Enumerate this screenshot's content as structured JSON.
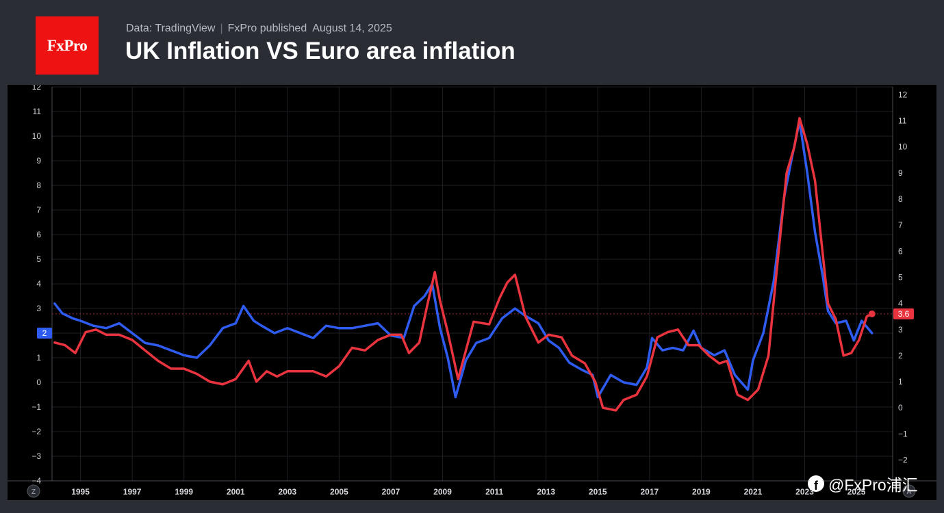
{
  "header": {
    "logo_text": "FxPro",
    "source": "Data: TradingView",
    "publisher": "FxPro published",
    "date": "August 14, 2025",
    "title": "UK Inflation VS Euro area inflation"
  },
  "watermark": {
    "icon": "facebook-icon",
    "text": "@FxPro浦汇"
  },
  "chart_data": {
    "type": "line",
    "title": "UK Inflation VS Euro area inflation",
    "xlim": [
      1993.9,
      2026.4
    ],
    "x_ticks": [
      "1995",
      "1997",
      "1999",
      "2001",
      "2003",
      "2005",
      "2007",
      "2009",
      "2011",
      "2013",
      "2015",
      "2017",
      "2019",
      "2021",
      "2023",
      "2025"
    ],
    "left_axis": {
      "ylim": [
        -4,
        12
      ],
      "ticks": [
        "12",
        "11",
        "10",
        "9",
        "8",
        "7",
        "6",
        "5",
        "4",
        "3",
        "2",
        "1",
        "0",
        "−1",
        "−2",
        "−3",
        "−4"
      ]
    },
    "right_axis": {
      "ylim": [
        -2.8,
        12.3
      ],
      "ticks": [
        "12",
        "11",
        "10",
        "9",
        "8",
        "7",
        "6",
        "5",
        "4",
        "3",
        "2",
        "1",
        "0",
        "−1",
        "−2"
      ]
    },
    "grid": true,
    "left_badge": "2",
    "right_badge": "3.6",
    "scale_buttons": {
      "left": "Z",
      "right": "A"
    },
    "series": [
      {
        "color": "#2f5cf0",
        "axis": "left",
        "points": [
          [
            1994.0,
            3.2
          ],
          [
            1994.3,
            2.8
          ],
          [
            1994.7,
            2.6
          ],
          [
            1995.0,
            2.5
          ],
          [
            1995.5,
            2.3
          ],
          [
            1996.0,
            2.2
          ],
          [
            1996.5,
            2.4
          ],
          [
            1997.0,
            2.0
          ],
          [
            1997.5,
            1.6
          ],
          [
            1998.0,
            1.5
          ],
          [
            1998.5,
            1.3
          ],
          [
            1999.0,
            1.1
          ],
          [
            1999.5,
            1.0
          ],
          [
            2000.0,
            1.5
          ],
          [
            2000.5,
            2.2
          ],
          [
            2001.0,
            2.4
          ],
          [
            2001.3,
            3.1
          ],
          [
            2001.7,
            2.5
          ],
          [
            2002.0,
            2.3
          ],
          [
            2002.5,
            2.0
          ],
          [
            2003.0,
            2.2
          ],
          [
            2003.5,
            2.0
          ],
          [
            2004.0,
            1.8
          ],
          [
            2004.5,
            2.3
          ],
          [
            2005.0,
            2.2
          ],
          [
            2005.5,
            2.2
          ],
          [
            2006.0,
            2.3
          ],
          [
            2006.5,
            2.4
          ],
          [
            2007.0,
            1.9
          ],
          [
            2007.5,
            1.8
          ],
          [
            2007.9,
            3.1
          ],
          [
            2008.3,
            3.5
          ],
          [
            2008.6,
            4.0
          ],
          [
            2008.9,
            2.2
          ],
          [
            2009.2,
            1.0
          ],
          [
            2009.5,
            -0.6
          ],
          [
            2009.9,
            0.9
          ],
          [
            2010.3,
            1.6
          ],
          [
            2010.8,
            1.8
          ],
          [
            2011.3,
            2.6
          ],
          [
            2011.8,
            3.0
          ],
          [
            2012.2,
            2.7
          ],
          [
            2012.7,
            2.4
          ],
          [
            2013.1,
            1.7
          ],
          [
            2013.5,
            1.4
          ],
          [
            2013.9,
            0.8
          ],
          [
            2014.4,
            0.5
          ],
          [
            2014.8,
            0.3
          ],
          [
            2015.0,
            -0.6
          ],
          [
            2015.5,
            0.3
          ],
          [
            2016.0,
            0.0
          ],
          [
            2016.5,
            -0.1
          ],
          [
            2016.9,
            0.6
          ],
          [
            2017.1,
            1.8
          ],
          [
            2017.5,
            1.3
          ],
          [
            2017.9,
            1.4
          ],
          [
            2018.3,
            1.3
          ],
          [
            2018.7,
            2.1
          ],
          [
            2019.0,
            1.4
          ],
          [
            2019.5,
            1.1
          ],
          [
            2019.9,
            1.3
          ],
          [
            2020.3,
            0.3
          ],
          [
            2020.8,
            -0.3
          ],
          [
            2021.0,
            0.9
          ],
          [
            2021.4,
            2.0
          ],
          [
            2021.8,
            4.1
          ],
          [
            2022.2,
            7.5
          ],
          [
            2022.5,
            9.1
          ],
          [
            2022.8,
            10.6
          ],
          [
            2023.1,
            8.5
          ],
          [
            2023.4,
            6.1
          ],
          [
            2023.7,
            4.3
          ],
          [
            2023.9,
            2.9
          ],
          [
            2024.2,
            2.4
          ],
          [
            2024.6,
            2.5
          ],
          [
            2024.9,
            1.7
          ],
          [
            2025.2,
            2.5
          ],
          [
            2025.6,
            2.0
          ]
        ]
      },
      {
        "color": "#e9343f",
        "axis": "right",
        "points": [
          [
            1994.0,
            2.5
          ],
          [
            1994.4,
            2.4
          ],
          [
            1994.8,
            2.1
          ],
          [
            1995.2,
            2.9
          ],
          [
            1995.6,
            3.0
          ],
          [
            1996.0,
            2.8
          ],
          [
            1996.5,
            2.8
          ],
          [
            1997.0,
            2.6
          ],
          [
            1997.5,
            2.2
          ],
          [
            1998.0,
            1.8
          ],
          [
            1998.5,
            1.5
          ],
          [
            1999.0,
            1.5
          ],
          [
            1999.5,
            1.3
          ],
          [
            2000.0,
            1.0
          ],
          [
            2000.5,
            0.9
          ],
          [
            2001.0,
            1.1
          ],
          [
            2001.5,
            1.8
          ],
          [
            2001.8,
            1.0
          ],
          [
            2002.2,
            1.4
          ],
          [
            2002.6,
            1.2
          ],
          [
            2003.0,
            1.4
          ],
          [
            2003.5,
            1.4
          ],
          [
            2004.0,
            1.4
          ],
          [
            2004.5,
            1.2
          ],
          [
            2005.0,
            1.6
          ],
          [
            2005.5,
            2.3
          ],
          [
            2006.0,
            2.2
          ],
          [
            2006.5,
            2.6
          ],
          [
            2007.0,
            2.8
          ],
          [
            2007.4,
            2.8
          ],
          [
            2007.7,
            2.1
          ],
          [
            2008.1,
            2.5
          ],
          [
            2008.4,
            3.9
          ],
          [
            2008.7,
            5.2
          ],
          [
            2008.9,
            4.1
          ],
          [
            2009.2,
            2.9
          ],
          [
            2009.6,
            1.1
          ],
          [
            2009.9,
            2.2
          ],
          [
            2010.2,
            3.3
          ],
          [
            2010.8,
            3.2
          ],
          [
            2011.2,
            4.2
          ],
          [
            2011.5,
            4.8
          ],
          [
            2011.8,
            5.1
          ],
          [
            2012.2,
            3.5
          ],
          [
            2012.7,
            2.5
          ],
          [
            2013.1,
            2.8
          ],
          [
            2013.6,
            2.7
          ],
          [
            2014.0,
            2.0
          ],
          [
            2014.5,
            1.7
          ],
          [
            2014.9,
            1.0
          ],
          [
            2015.2,
            0.0
          ],
          [
            2015.7,
            -0.1
          ],
          [
            2016.0,
            0.3
          ],
          [
            2016.5,
            0.5
          ],
          [
            2016.9,
            1.2
          ],
          [
            2017.3,
            2.7
          ],
          [
            2017.7,
            2.9
          ],
          [
            2018.1,
            3.0
          ],
          [
            2018.5,
            2.4
          ],
          [
            2018.9,
            2.4
          ],
          [
            2019.3,
            2.0
          ],
          [
            2019.7,
            1.7
          ],
          [
            2020.0,
            1.8
          ],
          [
            2020.4,
            0.5
          ],
          [
            2020.8,
            0.3
          ],
          [
            2021.2,
            0.7
          ],
          [
            2021.6,
            2.0
          ],
          [
            2021.9,
            5.1
          ],
          [
            2022.3,
            9.0
          ],
          [
            2022.6,
            10.0
          ],
          [
            2022.8,
            11.1
          ],
          [
            2023.1,
            10.1
          ],
          [
            2023.4,
            8.7
          ],
          [
            2023.6,
            6.8
          ],
          [
            2023.9,
            4.0
          ],
          [
            2024.2,
            3.4
          ],
          [
            2024.5,
            2.0
          ],
          [
            2024.8,
            2.1
          ],
          [
            2025.1,
            2.6
          ],
          [
            2025.4,
            3.5
          ],
          [
            2025.6,
            3.6
          ]
        ]
      }
    ]
  }
}
